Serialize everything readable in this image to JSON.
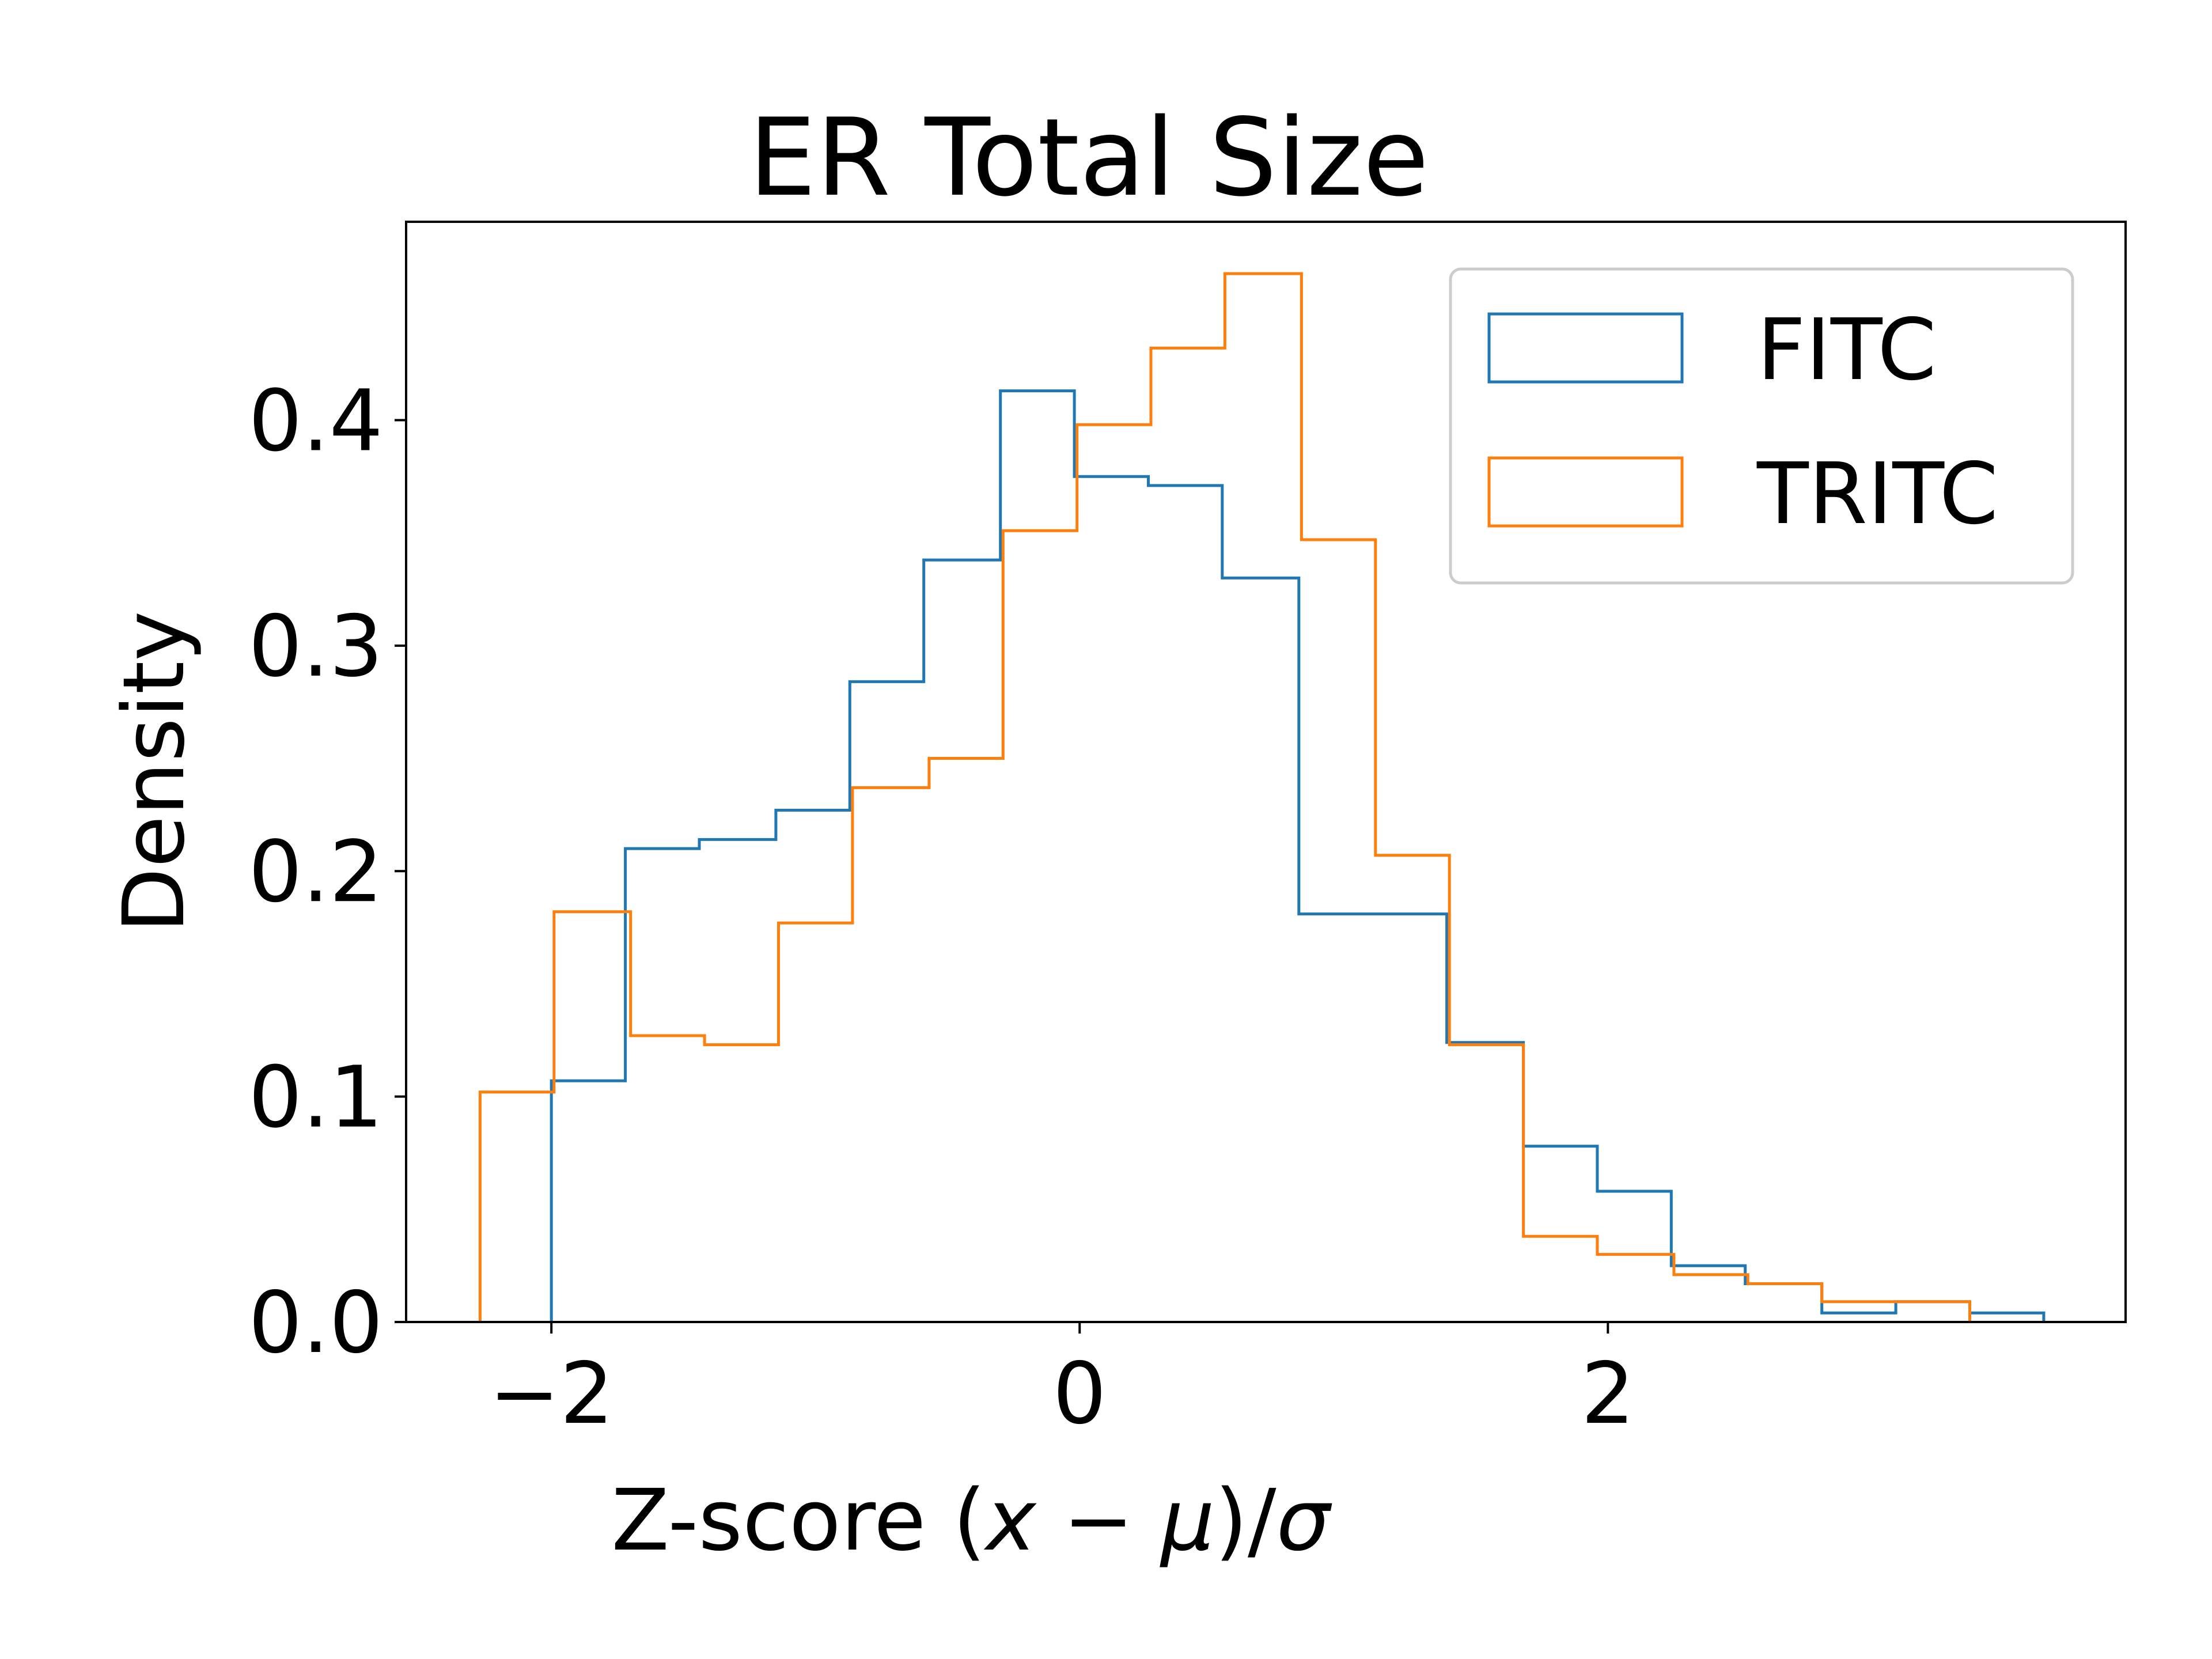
{
  "chart_data": {
    "type": "histogram",
    "title": "ER Total Size",
    "xlabel": "Z-score (x − μ)/σ",
    "xlabel_parts": {
      "prefix": "Z-score (",
      "x": "x",
      "minus": " − ",
      "mu": "μ",
      "close": ")/",
      "sigma": "σ"
    },
    "ylabel": "Density",
    "xlim": [
      -2.55,
      3.96
    ],
    "ylim": [
      0.0,
      0.488
    ],
    "xticks": [
      -2,
      0,
      2
    ],
    "xtick_labels": [
      "−2",
      "0",
      "2"
    ],
    "yticks": [
      0.0,
      0.1,
      0.2,
      0.3,
      0.4
    ],
    "ytick_labels": [
      "0.0",
      "0.1",
      "0.2",
      "0.3",
      "0.4"
    ],
    "grid": false,
    "histtype": "step",
    "legend": {
      "position": "top-right"
    },
    "series": [
      {
        "name": "FITC",
        "color": "#1f77b4",
        "bin_edges": [
          -2.0,
          -1.72,
          -1.44,
          -1.15,
          -0.87,
          -0.59,
          -0.3,
          -0.02,
          0.26,
          0.54,
          0.83,
          1.11,
          1.39,
          1.68,
          1.96,
          2.24,
          2.52,
          2.81,
          3.09,
          3.37,
          3.65
        ],
        "values": [
          0.107,
          0.21,
          0.214,
          0.227,
          0.284,
          0.338,
          0.413,
          0.375,
          0.371,
          0.33,
          0.181,
          0.181,
          0.124,
          0.078,
          0.058,
          0.025,
          0.017,
          0.004,
          0.009,
          0.004
        ]
      },
      {
        "name": "TRITC",
        "color": "#ff7f0e",
        "bin_edges": [
          -2.27,
          -1.99,
          -1.7,
          -1.42,
          -1.14,
          -0.86,
          -0.57,
          -0.29,
          -0.01,
          0.27,
          0.55,
          0.84,
          1.12,
          1.4,
          1.68,
          1.96,
          2.25,
          2.53,
          2.81,
          3.09,
          3.37
        ],
        "values": [
          0.102,
          0.182,
          0.127,
          0.123,
          0.177,
          0.237,
          0.25,
          0.351,
          0.398,
          0.432,
          0.465,
          0.347,
          0.207,
          0.123,
          0.038,
          0.03,
          0.021,
          0.017,
          0.009,
          0.009
        ]
      }
    ]
  }
}
